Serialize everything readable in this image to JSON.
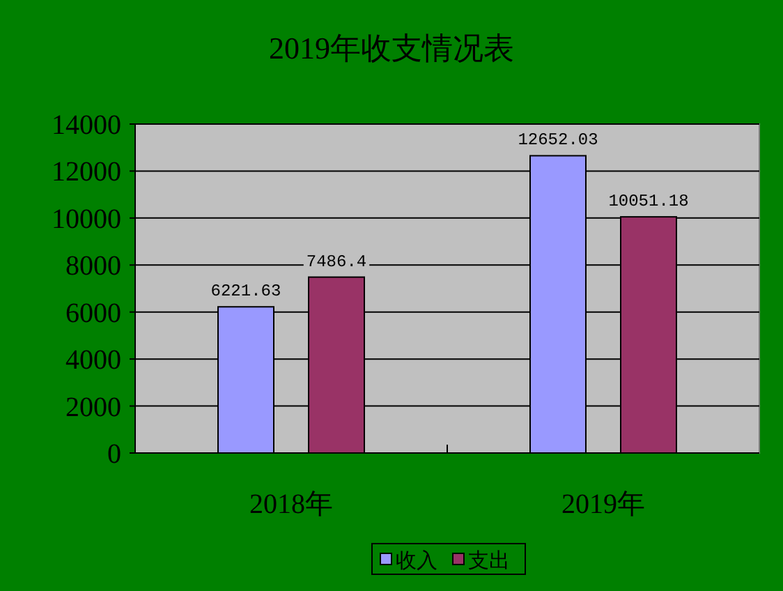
{
  "chart_data": {
    "type": "bar",
    "title": "2019年收支情况表",
    "categories": [
      "2018年",
      "2019年"
    ],
    "series": [
      {
        "name": "收入",
        "color": "#9999ff",
        "values": [
          6221.63,
          12652.03
        ]
      },
      {
        "name": "支出",
        "color": "#993366",
        "values": [
          7486.4,
          10051.18
        ]
      }
    ],
    "ylim": [
      0,
      14000
    ],
    "yticks": [
      0,
      2000,
      4000,
      6000,
      8000,
      10000,
      12000,
      14000
    ],
    "grid": "y",
    "legend": "bottom",
    "data_labels": true
  }
}
